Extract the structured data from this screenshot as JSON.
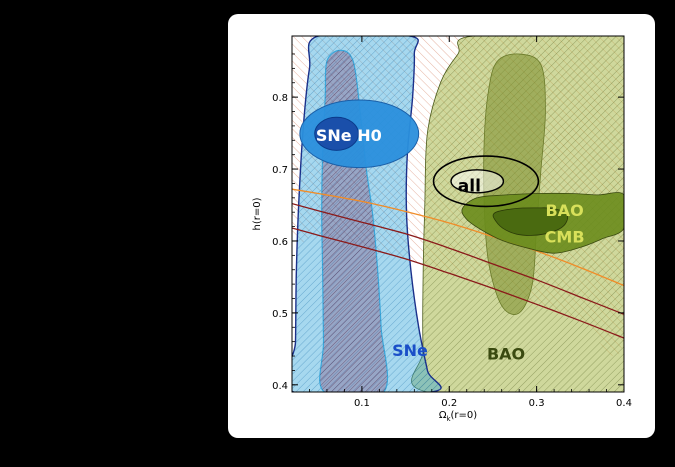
{
  "chart_data": {
    "type": "contour",
    "xlabel": "Ω",
    "xlabel_sub": "k",
    "xlabel_suffix": "(r=0)",
    "ylabel": "h(r=0)",
    "xlim": [
      0.02,
      0.4
    ],
    "ylim": [
      0.39,
      0.885
    ],
    "xticks": [
      0.1,
      0.2,
      0.3,
      0.4
    ],
    "xtick_labels": [
      "0.1",
      "0.2",
      "0.3",
      "0.4"
    ],
    "yticks": [
      0.4,
      0.5,
      0.6,
      0.7,
      0.8
    ],
    "ytick_labels": [
      "0.4",
      "0.5",
      "0.6",
      "0.7",
      "0.8"
    ],
    "colors": {
      "sne": "#3aa8dc",
      "sne_edge": "#1a2f8a",
      "sne_h0_outer": "#2a8fdc",
      "sne_h0_inner": "#1a4faa",
      "bao": "#a8b84a",
      "bao_inner": "#7a8c2a",
      "bao_edge": "#4a5a1a",
      "bao_cmb_outer": "#6a8c1c",
      "bao_cmb_inner": "#4a6a10",
      "cmb_hatch": "#c8542a",
      "cmb_line_orange": "#f08c28",
      "cmb_line_red": "#8a1a1a",
      "all": "#000000"
    },
    "regions": [
      {
        "name": "SNe",
        "label": "SNe",
        "label_color": "#1a4fc8",
        "outer": [
          [
            0.022,
            0.39
          ],
          [
            0.024,
            0.46
          ],
          [
            0.025,
            0.56
          ],
          [
            0.028,
            0.66
          ],
          [
            0.033,
            0.76
          ],
          [
            0.04,
            0.84
          ],
          [
            0.05,
            0.885
          ],
          [
            0.155,
            0.885
          ],
          [
            0.16,
            0.86
          ],
          [
            0.158,
            0.8
          ],
          [
            0.152,
            0.72
          ],
          [
            0.151,
            0.64
          ],
          [
            0.156,
            0.56
          ],
          [
            0.165,
            0.48
          ],
          [
            0.175,
            0.42
          ],
          [
            0.18,
            0.39
          ]
        ],
        "inner": [
          [
            0.057,
            0.39
          ],
          [
            0.056,
            0.46
          ],
          [
            0.055,
            0.56
          ],
          [
            0.054,
            0.64
          ],
          [
            0.055,
            0.72
          ],
          [
            0.058,
            0.8
          ],
          [
            0.06,
            0.85
          ],
          [
            0.075,
            0.865
          ],
          [
            0.09,
            0.85
          ],
          [
            0.098,
            0.78
          ],
          [
            0.105,
            0.7
          ],
          [
            0.112,
            0.64
          ],
          [
            0.118,
            0.56
          ],
          [
            0.122,
            0.48
          ],
          [
            0.125,
            0.39
          ]
        ],
        "label_at": [
          0.155,
          0.44
        ]
      },
      {
        "name": "BAO",
        "label": "BAO",
        "label_color": "#3a4a10",
        "outer": [
          [
            0.175,
            0.39
          ],
          [
            0.17,
            0.45
          ],
          [
            0.17,
            0.55
          ],
          [
            0.172,
            0.65
          ],
          [
            0.175,
            0.75
          ],
          [
            0.19,
            0.82
          ],
          [
            0.21,
            0.86
          ],
          [
            0.228,
            0.885
          ],
          [
            0.4,
            0.885
          ],
          [
            0.4,
            0.39
          ]
        ],
        "inner": [
          [
            0.245,
            0.57
          ],
          [
            0.24,
            0.65
          ],
          [
            0.24,
            0.74
          ],
          [
            0.245,
            0.81
          ],
          [
            0.255,
            0.85
          ],
          [
            0.28,
            0.86
          ],
          [
            0.305,
            0.845
          ],
          [
            0.31,
            0.78
          ],
          [
            0.305,
            0.7
          ],
          [
            0.3,
            0.62
          ],
          [
            0.295,
            0.54
          ],
          [
            0.28,
            0.5
          ],
          [
            0.26,
            0.51
          ]
        ],
        "label_at": [
          0.265,
          0.435
        ]
      },
      {
        "name": "BAO+CMB",
        "label_line1": "BAO",
        "label_line2": "CMB",
        "label_color": "#d8e05a",
        "outer": [
          [
            0.215,
            0.645
          ],
          [
            0.232,
            0.66
          ],
          [
            0.265,
            0.664
          ],
          [
            0.3,
            0.666
          ],
          [
            0.34,
            0.666
          ],
          [
            0.37,
            0.664
          ],
          [
            0.4,
            0.664
          ],
          [
            0.4,
            0.618
          ],
          [
            0.375,
            0.603
          ],
          [
            0.35,
            0.591
          ],
          [
            0.32,
            0.583
          ],
          [
            0.29,
            0.59
          ],
          [
            0.26,
            0.601
          ],
          [
            0.236,
            0.616
          ],
          [
            0.22,
            0.63
          ]
        ],
        "inner": [
          [
            0.252,
            0.639
          ],
          [
            0.275,
            0.645
          ],
          [
            0.3,
            0.646
          ],
          [
            0.32,
            0.645
          ],
          [
            0.335,
            0.636
          ],
          [
            0.33,
            0.62
          ],
          [
            0.31,
            0.61
          ],
          [
            0.285,
            0.608
          ],
          [
            0.265,
            0.615
          ],
          [
            0.253,
            0.628
          ]
        ],
        "label_at": [
          0.332,
          0.625
        ]
      },
      {
        "name": "SNe H0",
        "label": "SNe H0",
        "label_color": "#ffffff",
        "outer": {
          "cx": 0.097,
          "cy": 0.749,
          "rx": 0.068,
          "ry": 0.047
        },
        "inner": {
          "cx": 0.071,
          "cy": 0.749,
          "rx": 0.025,
          "ry": 0.023
        },
        "label_at": [
          0.085,
          0.749
        ]
      },
      {
        "name": "all",
        "label": "all",
        "label_color": "#000000",
        "outer": {
          "cx": 0.242,
          "cy": 0.683,
          "rx": 0.06,
          "ry": 0.035
        },
        "inner": {
          "cx": 0.232,
          "cy": 0.683,
          "rx": 0.03,
          "ry": 0.016
        },
        "label_at": [
          0.223,
          0.674
        ]
      }
    ],
    "cmb_curves": [
      {
        "name": "orange",
        "points": [
          [
            0.02,
            0.672
          ],
          [
            0.05,
            0.666
          ],
          [
            0.1,
            0.655
          ],
          [
            0.15,
            0.641
          ],
          [
            0.2,
            0.625
          ],
          [
            0.25,
            0.606
          ],
          [
            0.3,
            0.586
          ],
          [
            0.35,
            0.563
          ],
          [
            0.4,
            0.538
          ]
        ]
      },
      {
        "name": "red_upper",
        "points": [
          [
            0.02,
            0.652
          ],
          [
            0.05,
            0.642
          ],
          [
            0.1,
            0.626
          ],
          [
            0.15,
            0.61
          ],
          [
            0.2,
            0.59
          ],
          [
            0.25,
            0.568
          ],
          [
            0.3,
            0.546
          ],
          [
            0.35,
            0.522
          ],
          [
            0.4,
            0.498
          ]
        ]
      },
      {
        "name": "red_lower",
        "points": [
          [
            0.02,
            0.618
          ],
          [
            0.05,
            0.608
          ],
          [
            0.1,
            0.592
          ],
          [
            0.15,
            0.575
          ],
          [
            0.2,
            0.555
          ],
          [
            0.25,
            0.534
          ],
          [
            0.3,
            0.512
          ],
          [
            0.35,
            0.489
          ],
          [
            0.4,
            0.465
          ]
        ]
      }
    ]
  }
}
